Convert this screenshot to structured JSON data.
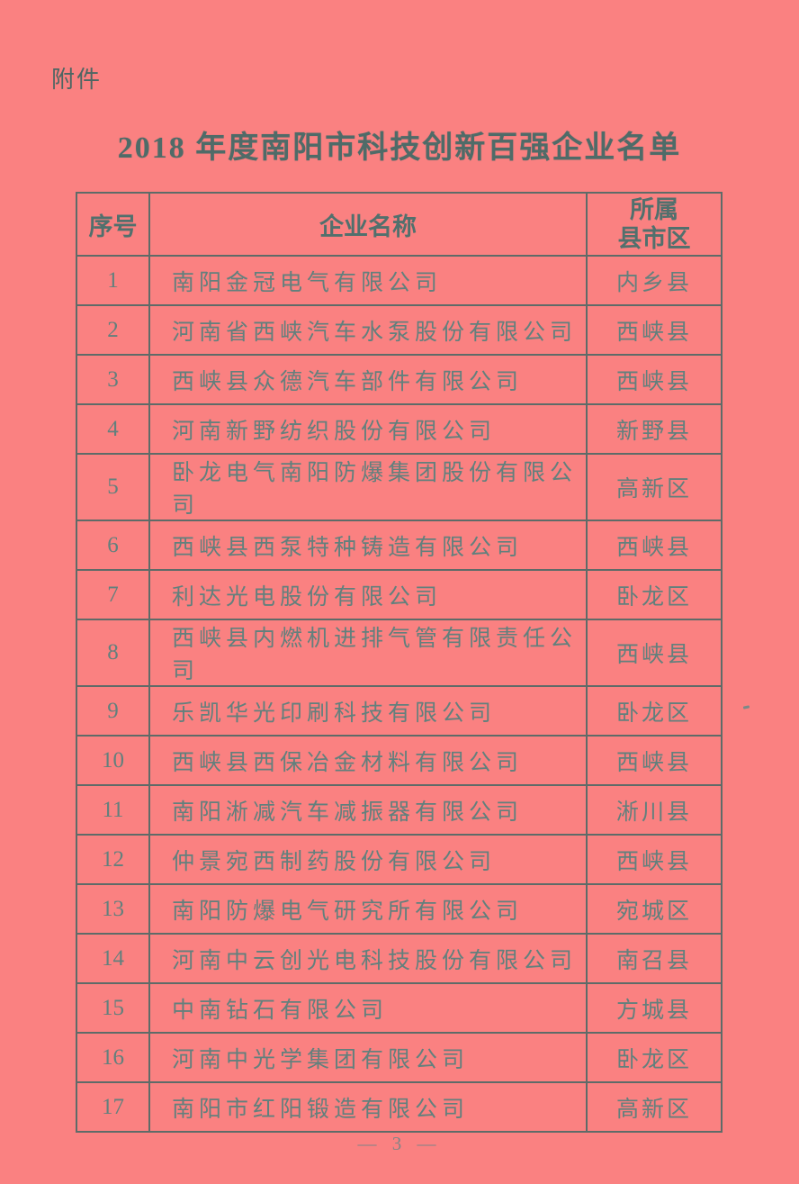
{
  "page": {
    "attachment_label": "附件",
    "title": "2018 年度南阳市科技创新百强企业名单",
    "page_number": "— 3 —"
  },
  "table": {
    "headers": {
      "no": "序号",
      "name": "企业名称",
      "district": "所属\n县市区"
    },
    "rows": [
      {
        "no": "1",
        "name": "南阳金冠电气有限公司",
        "district": "内乡县"
      },
      {
        "no": "2",
        "name": "河南省西峡汽车水泵股份有限公司",
        "district": "西峡县"
      },
      {
        "no": "3",
        "name": "西峡县众德汽车部件有限公司",
        "district": "西峡县"
      },
      {
        "no": "4",
        "name": "河南新野纺织股份有限公司",
        "district": "新野县"
      },
      {
        "no": "5",
        "name": "卧龙电气南阳防爆集团股份有限公司",
        "district": "高新区"
      },
      {
        "no": "6",
        "name": "西峡县西泵特种铸造有限公司",
        "district": "西峡县"
      },
      {
        "no": "7",
        "name": "利达光电股份有限公司",
        "district": "卧龙区"
      },
      {
        "no": "8",
        "name": "西峡县内燃机进排气管有限责任公司",
        "district": "西峡县"
      },
      {
        "no": "9",
        "name": "乐凯华光印刷科技有限公司",
        "district": "卧龙区"
      },
      {
        "no": "10",
        "name": "西峡县西保冶金材料有限公司",
        "district": "西峡县"
      },
      {
        "no": "11",
        "name": "南阳淅减汽车减振器有限公司",
        "district": "淅川县"
      },
      {
        "no": "12",
        "name": "仲景宛西制药股份有限公司",
        "district": "西峡县"
      },
      {
        "no": "13",
        "name": "南阳防爆电气研究所有限公司",
        "district": "宛城区"
      },
      {
        "no": "14",
        "name": "河南中云创光电科技股份有限公司",
        "district": "南召县"
      },
      {
        "no": "15",
        "name": "中南钻石有限公司",
        "district": "方城县"
      },
      {
        "no": "16",
        "name": "河南中光学集团有限公司",
        "district": "卧龙区"
      },
      {
        "no": "17",
        "name": "南阳市红阳锻造有限公司",
        "district": "高新区"
      }
    ]
  },
  "colors": {
    "paper_background": "#fa8181",
    "table_border": "#5e6b68",
    "title_text": "#4f6b68",
    "body_text": "#62807d",
    "page_number_text": "#7f8486"
  }
}
